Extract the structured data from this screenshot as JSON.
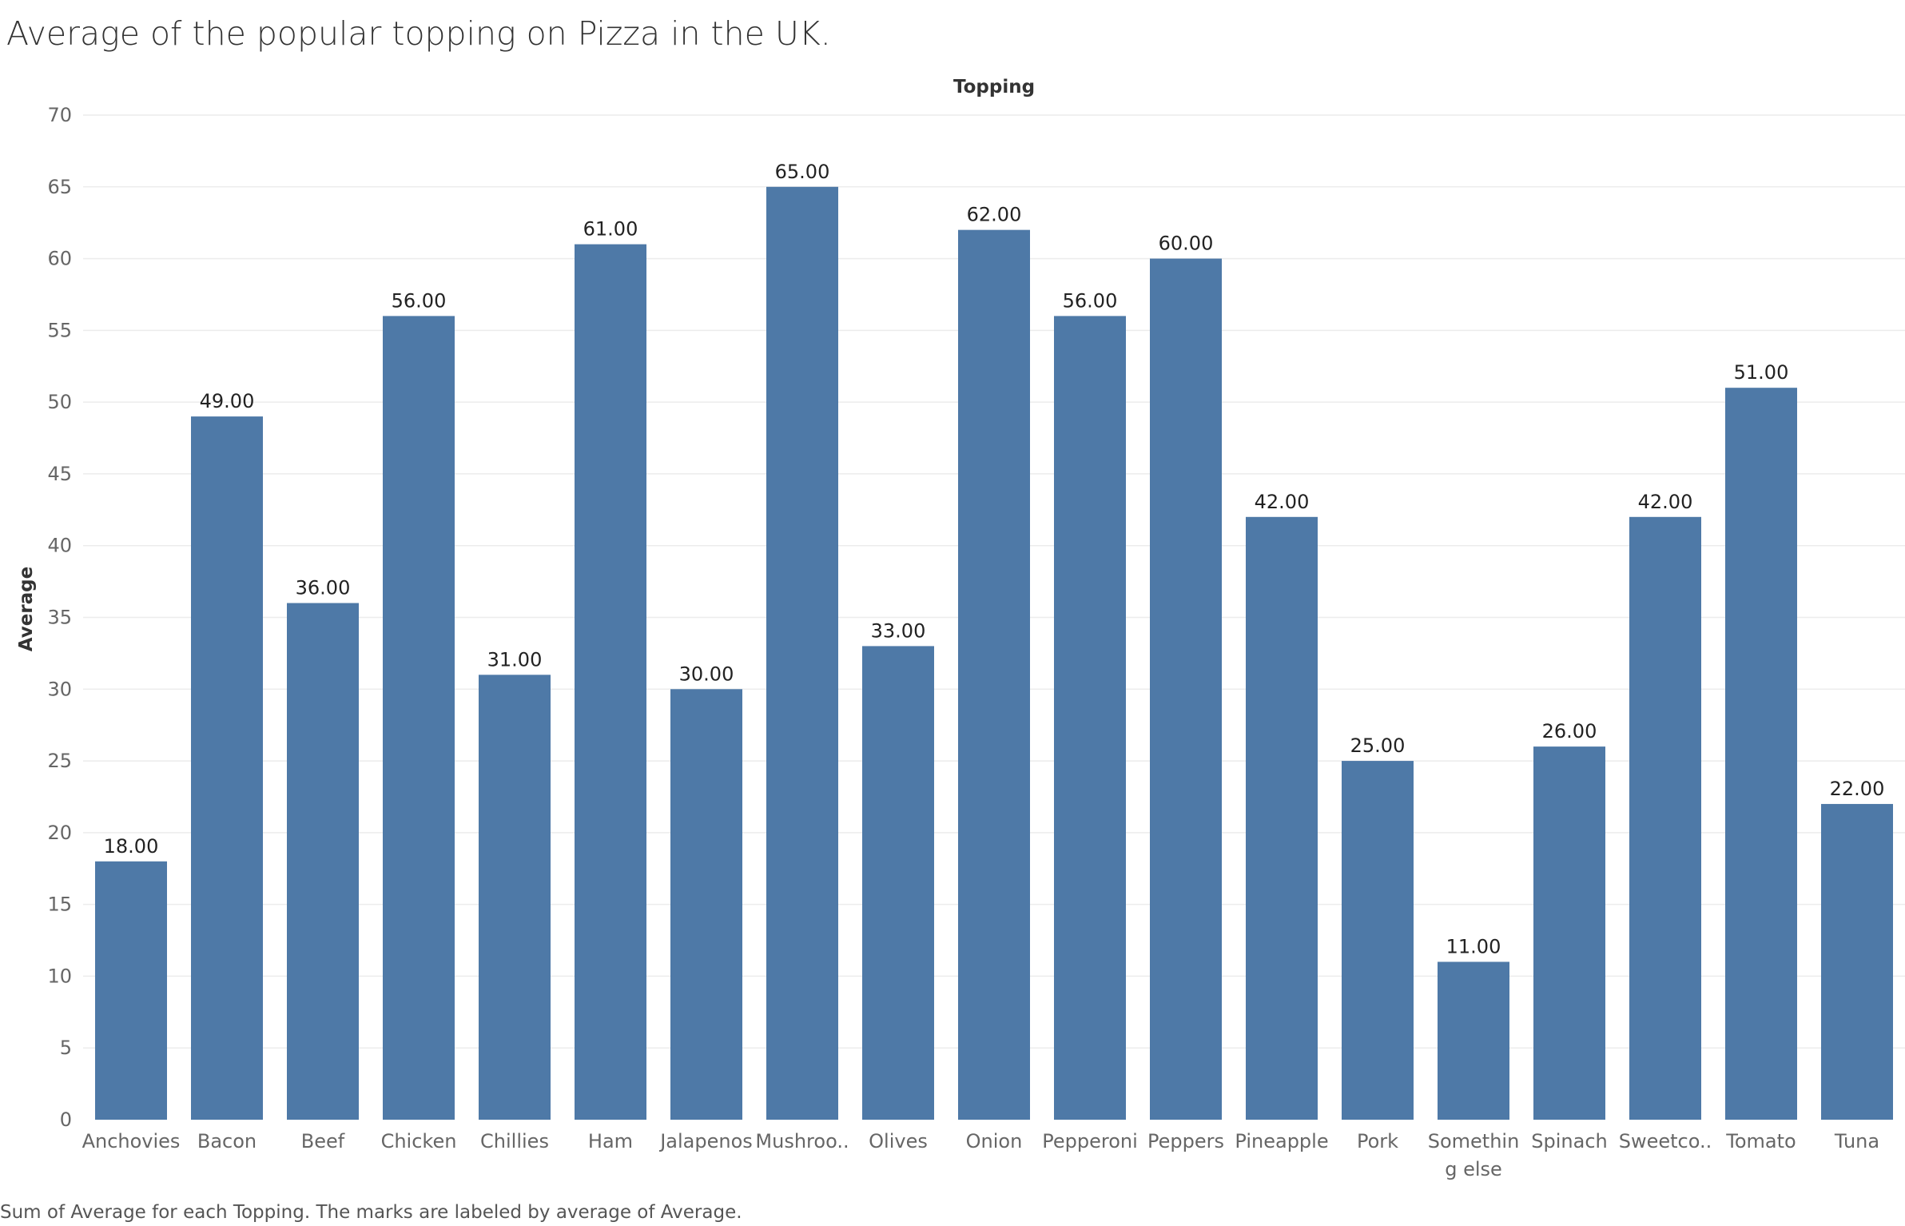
{
  "chart_data": {
    "type": "bar",
    "title": "Average of the popular topping on Pizza in the UK.",
    "xlabel": "Topping",
    "ylabel": "Average",
    "caption": "Sum of Average for each Topping.  The marks are labeled by average of Average.",
    "ylim": [
      0,
      70
    ],
    "yticks": [
      0,
      5,
      10,
      15,
      20,
      25,
      30,
      35,
      40,
      45,
      50,
      55,
      60,
      65,
      70
    ],
    "grid": true,
    "bar_color": "#4e79a7",
    "categories": [
      [
        "Anchovies"
      ],
      [
        "Bacon"
      ],
      [
        "Beef"
      ],
      [
        "Chicken"
      ],
      [
        "Chillies"
      ],
      [
        "Ham"
      ],
      [
        "Jalapenos"
      ],
      [
        "Mushroo.."
      ],
      [
        "Olives"
      ],
      [
        "Onion"
      ],
      [
        "Pepperoni"
      ],
      [
        "Peppers"
      ],
      [
        "Pineapple"
      ],
      [
        "Pork"
      ],
      [
        "Somethin",
        "g else"
      ],
      [
        "Spinach"
      ],
      [
        "Sweetco.."
      ],
      [
        "Tomato"
      ],
      [
        "Tuna"
      ]
    ],
    "values": [
      18,
      49,
      36,
      56,
      31,
      61,
      30,
      65,
      33,
      62,
      56,
      60,
      42,
      25,
      11,
      26,
      42,
      51,
      22
    ],
    "value_labels": [
      "18.00",
      "49.00",
      "36.00",
      "56.00",
      "31.00",
      "61.00",
      "30.00",
      "65.00",
      "33.00",
      "62.00",
      "56.00",
      "60.00",
      "42.00",
      "25.00",
      "11.00",
      "26.00",
      "42.00",
      "51.00",
      "22.00"
    ]
  }
}
